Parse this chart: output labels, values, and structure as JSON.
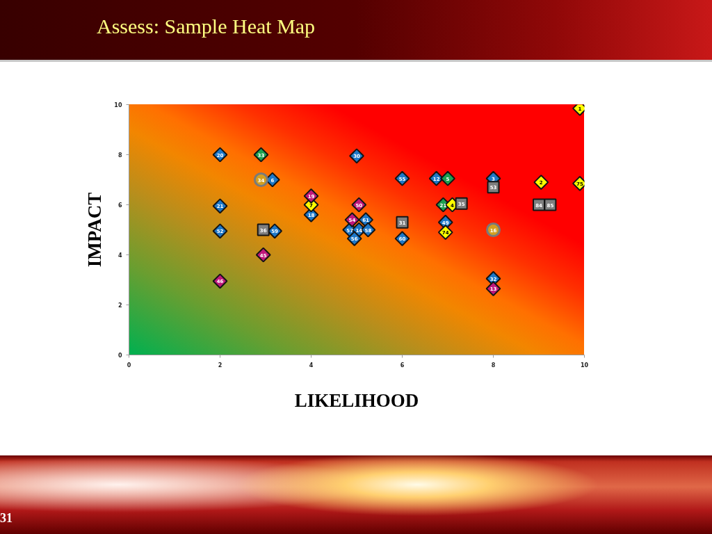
{
  "chart_data": {
    "type": "scatter",
    "title": "Assess: Sample Heat Map",
    "xlabel": "LIKELIHOOD",
    "ylabel": "IMPACT",
    "xlim": [
      0,
      10
    ],
    "ylim": [
      0,
      10
    ],
    "xticks": [
      0,
      2,
      4,
      6,
      8,
      10
    ],
    "yticks": [
      0,
      2,
      4,
      6,
      8,
      10
    ],
    "series": [
      {
        "color": "#1e78c8",
        "marker": "diamond",
        "x": [
          2,
          3.15,
          2,
          2,
          3.2,
          4,
          5,
          6,
          6.75,
          8,
          6.95,
          5.2,
          4.85,
          5.05,
          5.25,
          4.95,
          6,
          8
        ],
        "values": [
          8,
          7,
          5.95,
          4.95,
          4.95,
          5.6,
          7.95,
          7.05,
          7.05,
          7.05,
          5.3,
          5.4,
          5,
          5,
          5,
          4.65,
          4.65,
          3.05
        ]
      },
      {
        "color": "#1fa050",
        "marker": "diamond",
        "x": [
          2.9,
          7,
          6.9
        ],
        "values": [
          8,
          7.05,
          6
        ]
      },
      {
        "color": "#ffff00",
        "marker": "diamond",
        "x": [
          4,
          7.1,
          6.95,
          9.05,
          9.9,
          9.9
        ],
        "values": [
          6,
          6,
          4.9,
          6.9,
          6.85,
          9.85
        ]
      },
      {
        "color": "#c0187c",
        "marker": "diamond",
        "x": [
          4,
          5.05,
          4.9,
          2.95,
          2,
          8
        ],
        "values": [
          6.35,
          6,
          5.4,
          4,
          2.95,
          2.65
        ]
      },
      {
        "color": "#7f7f7f",
        "marker": "square",
        "x": [
          2.95,
          6,
          7.3,
          8,
          9,
          9.25
        ],
        "values": [
          5,
          5.3,
          6.05,
          6.7,
          6,
          6
        ]
      },
      {
        "color": "#d4a020",
        "marker": "circle",
        "x": [
          2.9,
          8
        ],
        "values": [
          7,
          5
        ]
      }
    ],
    "annotations": [
      {
        "text": "20",
        "x": 2,
        "y": 8
      },
      {
        "text": "6",
        "x": 3.15,
        "y": 7
      },
      {
        "text": "21",
        "x": 2,
        "y": 5.95
      },
      {
        "text": "52",
        "x": 2,
        "y": 4.95
      },
      {
        "text": "59",
        "x": 3.2,
        "y": 4.95
      },
      {
        "text": "18",
        "x": 4,
        "y": 5.6
      },
      {
        "text": "30",
        "x": 5,
        "y": 7.95
      },
      {
        "text": "55",
        "x": 6,
        "y": 7.05
      },
      {
        "text": "12",
        "x": 6.75,
        "y": 7.05
      },
      {
        "text": "3",
        "x": 8,
        "y": 7.05
      },
      {
        "text": "49",
        "x": 6.95,
        "y": 5.3
      },
      {
        "text": "61",
        "x": 5.2,
        "y": 5.4
      },
      {
        "text": "57",
        "x": 4.85,
        "y": 5
      },
      {
        "text": "14",
        "x": 5.05,
        "y": 5
      },
      {
        "text": "58",
        "x": 5.25,
        "y": 5
      },
      {
        "text": "56",
        "x": 4.95,
        "y": 4.65
      },
      {
        "text": "60",
        "x": 6,
        "y": 4.65
      },
      {
        "text": "32",
        "x": 8,
        "y": 3.05
      },
      {
        "text": "33",
        "x": 2.9,
        "y": 8
      },
      {
        "text": "5",
        "x": 7,
        "y": 7.05
      },
      {
        "text": "21",
        "x": 6.9,
        "y": 6
      },
      {
        "text": "7",
        "x": 4,
        "y": 6
      },
      {
        "text": "4",
        "x": 7.1,
        "y": 6
      },
      {
        "text": "74",
        "x": 6.95,
        "y": 4.9
      },
      {
        "text": "2",
        "x": 9.05,
        "y": 6.9
      },
      {
        "text": "75",
        "x": 9.9,
        "y": 6.85
      },
      {
        "text": "1",
        "x": 9.9,
        "y": 9.85
      },
      {
        "text": "19",
        "x": 4,
        "y": 6.35
      },
      {
        "text": "50",
        "x": 5.05,
        "y": 6
      },
      {
        "text": "54",
        "x": 4.9,
        "y": 5.4
      },
      {
        "text": "45",
        "x": 2.95,
        "y": 4
      },
      {
        "text": "46",
        "x": 2,
        "y": 2.95
      },
      {
        "text": "13",
        "x": 8,
        "y": 2.65
      },
      {
        "text": "36",
        "x": 2.95,
        "y": 5
      },
      {
        "text": "31",
        "x": 6,
        "y": 5.3
      },
      {
        "text": "35",
        "x": 7.3,
        "y": 6.05
      },
      {
        "text": "53",
        "x": 8,
        "y": 6.7
      },
      {
        "text": "84",
        "x": 9,
        "y": 6
      },
      {
        "text": "85",
        "x": 9.25,
        "y": 6
      },
      {
        "text": "34",
        "x": 2.9,
        "y": 7
      },
      {
        "text": "16",
        "x": 8,
        "y": 5
      },
      "31"
    ]
  }
}
